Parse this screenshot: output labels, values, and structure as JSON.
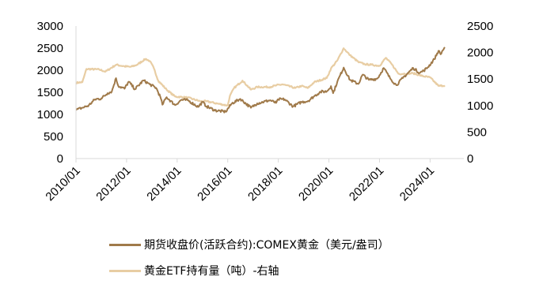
{
  "chart_data": {
    "type": "line",
    "title": "",
    "x_axis": {
      "type": "date",
      "range": [
        "2010-01",
        "2025-05"
      ],
      "tick_labels": [
        "2010/01",
        "2012/01",
        "2014/01",
        "2016/01",
        "2018/01",
        "2020/01",
        "2022/01",
        "2024/01"
      ],
      "tick_dates": [
        "2010-01",
        "2012-01",
        "2014-01",
        "2016-01",
        "2018-01",
        "2020-01",
        "2022-01",
        "2024-01"
      ]
    },
    "y_left": {
      "range": [
        0,
        3000
      ],
      "tick_labels": [
        "0",
        "500",
        "1000",
        "1500",
        "2000",
        "2500",
        "3000"
      ],
      "ticks": [
        0,
        500,
        1000,
        1500,
        2000,
        2500,
        3000
      ]
    },
    "y_right": {
      "range": [
        0,
        2500
      ],
      "tick_labels": [
        "0",
        "500",
        "1000",
        "1500",
        "2000",
        "2500"
      ],
      "ticks": [
        0,
        500,
        1000,
        1500,
        2000,
        2500
      ]
    },
    "legend_position": "bottom",
    "grid": false,
    "series": [
      {
        "name": "期货收盘价(活跃合约):COMEX黄金（美元/盎司）",
        "axis": "left",
        "color": "#a07a4a",
        "points": [
          [
            "2010-01",
            1100
          ],
          [
            "2010-04",
            1150
          ],
          [
            "2010-07",
            1200
          ],
          [
            "2010-10",
            1340
          ],
          [
            "2011-01",
            1360
          ],
          [
            "2011-04",
            1480
          ],
          [
            "2011-06",
            1520
          ],
          [
            "2011-08",
            1820
          ],
          [
            "2011-09",
            1650
          ],
          [
            "2011-12",
            1580
          ],
          [
            "2012-02",
            1740
          ],
          [
            "2012-05",
            1570
          ],
          [
            "2012-09",
            1770
          ],
          [
            "2012-12",
            1680
          ],
          [
            "2013-03",
            1600
          ],
          [
            "2013-05",
            1400
          ],
          [
            "2013-06",
            1220
          ],
          [
            "2013-08",
            1390
          ],
          [
            "2013-12",
            1210
          ],
          [
            "2014-03",
            1330
          ],
          [
            "2014-06",
            1320
          ],
          [
            "2014-11",
            1170
          ],
          [
            "2015-01",
            1280
          ],
          [
            "2015-03",
            1180
          ],
          [
            "2015-07",
            1090
          ],
          [
            "2015-12",
            1060
          ],
          [
            "2016-03",
            1250
          ],
          [
            "2016-07",
            1350
          ],
          [
            "2016-12",
            1150
          ],
          [
            "2017-03",
            1250
          ],
          [
            "2017-09",
            1320
          ],
          [
            "2017-12",
            1260
          ],
          [
            "2018-01",
            1340
          ],
          [
            "2018-04",
            1340
          ],
          [
            "2018-08",
            1180
          ],
          [
            "2018-12",
            1280
          ],
          [
            "2019-03",
            1300
          ],
          [
            "2019-06",
            1410
          ],
          [
            "2019-09",
            1510
          ],
          [
            "2019-12",
            1520
          ],
          [
            "2020-02",
            1640
          ],
          [
            "2020-03",
            1480
          ],
          [
            "2020-05",
            1740
          ],
          [
            "2020-08",
            2060
          ],
          [
            "2020-11",
            1780
          ],
          [
            "2021-03",
            1690
          ],
          [
            "2021-05",
            1900
          ],
          [
            "2021-08",
            1780
          ],
          [
            "2021-12",
            1810
          ],
          [
            "2022-03",
            2050
          ],
          [
            "2022-06",
            1820
          ],
          [
            "2022-09",
            1660
          ],
          [
            "2022-12",
            1820
          ],
          [
            "2023-05",
            2050
          ],
          [
            "2023-08",
            1940
          ],
          [
            "2023-10",
            1990
          ],
          [
            "2023-12",
            2070
          ],
          [
            "2024-03",
            2250
          ],
          [
            "2024-05",
            2440
          ],
          [
            "2024-06",
            2360
          ],
          [
            "2024-07",
            2450
          ],
          [
            "2024-08",
            2520
          ]
        ]
      },
      {
        "name": "黄金ETF持有量（吨）-右轴",
        "axis": "right",
        "color": "#e8cda3",
        "points": [
          [
            "2010-01",
            1430
          ],
          [
            "2010-04",
            1440
          ],
          [
            "2010-06",
            1690
          ],
          [
            "2010-12",
            1680
          ],
          [
            "2011-03",
            1640
          ],
          [
            "2011-08",
            1770
          ],
          [
            "2011-12",
            1740
          ],
          [
            "2012-03",
            1730
          ],
          [
            "2012-06",
            1770
          ],
          [
            "2012-10",
            1880
          ],
          [
            "2012-12",
            1840
          ],
          [
            "2013-02",
            1700
          ],
          [
            "2013-04",
            1470
          ],
          [
            "2013-08",
            1300
          ],
          [
            "2013-12",
            1170
          ],
          [
            "2014-06",
            1150
          ],
          [
            "2014-12",
            1080
          ],
          [
            "2015-03",
            1080
          ],
          [
            "2015-09",
            1030
          ],
          [
            "2016-01",
            1000
          ],
          [
            "2016-02",
            1180
          ],
          [
            "2016-04",
            1330
          ],
          [
            "2016-08",
            1470
          ],
          [
            "2016-12",
            1300
          ],
          [
            "2017-03",
            1350
          ],
          [
            "2017-09",
            1350
          ],
          [
            "2017-12",
            1380
          ],
          [
            "2018-03",
            1400
          ],
          [
            "2018-09",
            1330
          ],
          [
            "2018-12",
            1370
          ],
          [
            "2019-03",
            1330
          ],
          [
            "2019-06",
            1440
          ],
          [
            "2019-12",
            1520
          ],
          [
            "2020-02",
            1700
          ],
          [
            "2020-05",
            1850
          ],
          [
            "2020-08",
            2080
          ],
          [
            "2020-11",
            1950
          ],
          [
            "2021-03",
            1820
          ],
          [
            "2021-06",
            1780
          ],
          [
            "2021-09",
            1770
          ],
          [
            "2022-01",
            1750
          ],
          [
            "2022-04",
            1900
          ],
          [
            "2022-07",
            1770
          ],
          [
            "2022-10",
            1600
          ],
          [
            "2023-01",
            1600
          ],
          [
            "2023-05",
            1610
          ],
          [
            "2023-09",
            1560
          ],
          [
            "2024-01",
            1530
          ],
          [
            "2024-05",
            1370
          ],
          [
            "2024-08",
            1380
          ]
        ]
      }
    ]
  }
}
